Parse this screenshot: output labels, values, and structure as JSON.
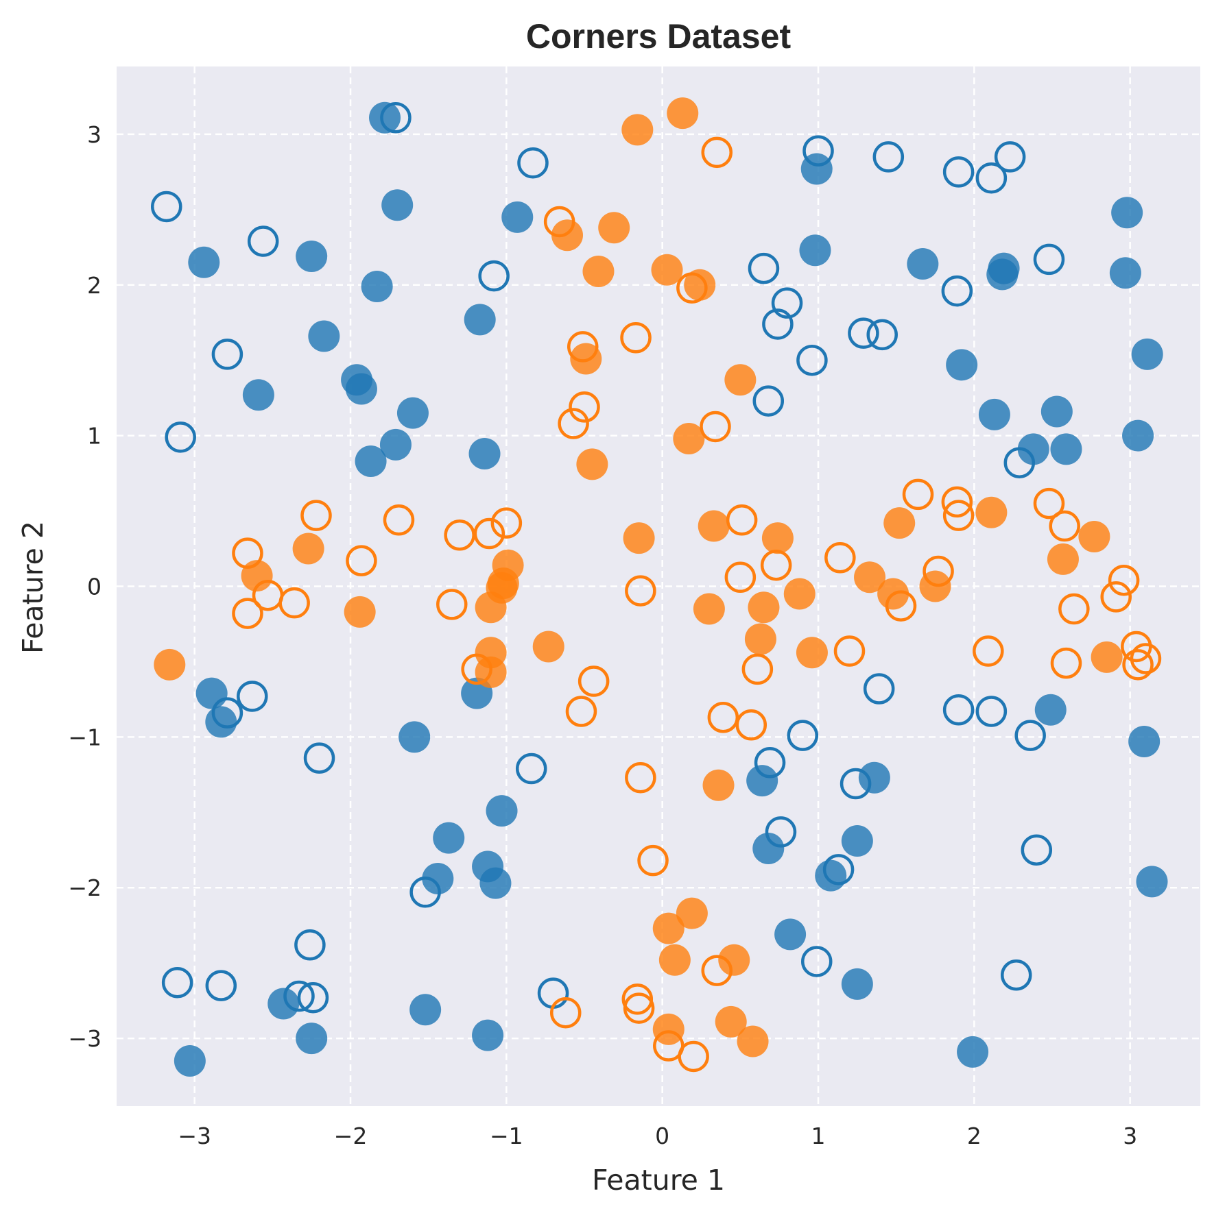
{
  "chart_data": {
    "type": "scatter",
    "title": "Corners Dataset",
    "xlabel": "Feature 1",
    "ylabel": "Feature 2",
    "xlim": [
      -3.5,
      3.45
    ],
    "ylim": [
      -3.45,
      3.45
    ],
    "xticks": [
      -3,
      -2,
      -1,
      0,
      1,
      2,
      3
    ],
    "yticks": [
      -3,
      -2,
      -1,
      0,
      1,
      2,
      3
    ],
    "xtick_labels": [
      "−3",
      "−2",
      "−1",
      "0",
      "1",
      "2",
      "3"
    ],
    "ytick_labels": [
      "−3",
      "−2",
      "−1",
      "0",
      "1",
      "2",
      "3"
    ],
    "grid": true,
    "legend": false,
    "background": "#eaeaf2",
    "colors": {
      "blue": "#1f77b4",
      "orange": "#ff7f0e"
    },
    "series": [
      {
        "color": "blue",
        "marker": "filled",
        "points": [
          [
            -1.78,
            3.11
          ],
          [
            -0.93,
            2.45
          ],
          [
            -1.7,
            2.53
          ],
          [
            -2.94,
            2.15
          ],
          [
            -2.25,
            2.19
          ],
          [
            -1.83,
            1.99
          ],
          [
            -1.17,
            1.77
          ],
          [
            -2.17,
            1.66
          ],
          [
            -1.96,
            1.37
          ],
          [
            -1.93,
            1.31
          ],
          [
            -2.59,
            1.27
          ],
          [
            -1.6,
            1.15
          ],
          [
            -1.71,
            0.94
          ],
          [
            -1.87,
            0.83
          ],
          [
            -1.14,
            0.88
          ],
          [
            0.99,
            2.77
          ],
          [
            0.98,
            2.23
          ],
          [
            1.67,
            2.14
          ],
          [
            2.19,
            2.11
          ],
          [
            2.18,
            2.07
          ],
          [
            2.98,
            2.48
          ],
          [
            2.97,
            2.08
          ],
          [
            1.92,
            1.47
          ],
          [
            3.11,
            1.54
          ],
          [
            2.13,
            1.14
          ],
          [
            2.53,
            1.16
          ],
          [
            3.05,
            1.0
          ],
          [
            2.38,
            0.91
          ],
          [
            2.59,
            0.91
          ],
          [
            -2.89,
            -0.71
          ],
          [
            -2.83,
            -0.9
          ],
          [
            -1.59,
            -1.0
          ],
          [
            -1.19,
            -0.71
          ],
          [
            -1.03,
            -1.49
          ],
          [
            -1.37,
            -1.67
          ],
          [
            -1.44,
            -1.94
          ],
          [
            -1.12,
            -1.86
          ],
          [
            -1.07,
            -1.97
          ],
          [
            -1.52,
            -2.81
          ],
          [
            -2.43,
            -2.77
          ],
          [
            -2.25,
            -3.0
          ],
          [
            -3.03,
            -3.15
          ],
          [
            -1.12,
            -2.98
          ],
          [
            0.64,
            -1.29
          ],
          [
            0.68,
            -1.74
          ],
          [
            1.36,
            -1.27
          ],
          [
            1.25,
            -1.69
          ],
          [
            1.08,
            -1.92
          ],
          [
            0.82,
            -2.31
          ],
          [
            1.25,
            -2.64
          ],
          [
            2.49,
            -0.82
          ],
          [
            3.09,
            -1.03
          ],
          [
            3.14,
            -1.96
          ],
          [
            1.99,
            -3.09
          ]
        ]
      },
      {
        "color": "blue",
        "marker": "open",
        "points": [
          [
            -1.71,
            3.11
          ],
          [
            -0.83,
            2.81
          ],
          [
            -3.18,
            2.52
          ],
          [
            -2.56,
            2.29
          ],
          [
            -1.08,
            2.06
          ],
          [
            -2.79,
            1.54
          ],
          [
            -3.09,
            0.99
          ],
          [
            1.0,
            2.89
          ],
          [
            1.45,
            2.85
          ],
          [
            1.9,
            2.75
          ],
          [
            2.11,
            2.71
          ],
          [
            2.23,
            2.85
          ],
          [
            2.48,
            2.17
          ],
          [
            0.65,
            2.11
          ],
          [
            1.89,
            1.96
          ],
          [
            0.8,
            1.88
          ],
          [
            0.74,
            1.74
          ],
          [
            1.29,
            1.68
          ],
          [
            1.41,
            1.67
          ],
          [
            0.96,
            1.5
          ],
          [
            0.68,
            1.23
          ],
          [
            2.29,
            0.82
          ],
          [
            -2.79,
            -0.84
          ],
          [
            -2.63,
            -0.73
          ],
          [
            -2.2,
            -1.14
          ],
          [
            -0.84,
            -1.21
          ],
          [
            -1.52,
            -2.03
          ],
          [
            -2.26,
            -2.38
          ],
          [
            -3.11,
            -2.63
          ],
          [
            -2.83,
            -2.65
          ],
          [
            -2.33,
            -2.72
          ],
          [
            -2.24,
            -2.73
          ],
          [
            -0.7,
            -2.7
          ],
          [
            1.39,
            -0.68
          ],
          [
            0.9,
            -0.99
          ],
          [
            0.69,
            -1.17
          ],
          [
            1.24,
            -1.31
          ],
          [
            0.76,
            -1.63
          ],
          [
            1.13,
            -1.88
          ],
          [
            0.99,
            -2.49
          ],
          [
            1.9,
            -0.82
          ],
          [
            2.11,
            -0.83
          ],
          [
            2.36,
            -0.99
          ],
          [
            2.4,
            -1.75
          ],
          [
            2.27,
            -2.58
          ]
        ]
      },
      {
        "color": "orange",
        "marker": "filled",
        "points": [
          [
            0.13,
            3.14
          ],
          [
            -0.16,
            3.03
          ],
          [
            -0.31,
            2.38
          ],
          [
            -0.61,
            2.33
          ],
          [
            -0.41,
            2.09
          ],
          [
            0.03,
            2.1
          ],
          [
            0.24,
            2.0
          ],
          [
            -0.49,
            1.51
          ],
          [
            0.5,
            1.37
          ],
          [
            -0.45,
            0.81
          ],
          [
            0.17,
            0.98
          ],
          [
            -3.16,
            -0.52
          ],
          [
            -2.27,
            0.25
          ],
          [
            -2.6,
            0.07
          ],
          [
            -1.94,
            -0.17
          ],
          [
            -0.99,
            0.14
          ],
          [
            -1.02,
            0.02
          ],
          [
            -1.03,
            -0.01
          ],
          [
            -1.1,
            -0.14
          ],
          [
            -1.1,
            -0.44
          ],
          [
            -1.1,
            -0.57
          ],
          [
            -0.73,
            -0.4
          ],
          [
            -0.15,
            0.32
          ],
          [
            0.33,
            0.4
          ],
          [
            0.74,
            0.32
          ],
          [
            0.3,
            -0.15
          ],
          [
            0.65,
            -0.14
          ],
          [
            0.63,
            -0.35
          ],
          [
            0.88,
            -0.05
          ],
          [
            0.96,
            -0.44
          ],
          [
            1.33,
            0.06
          ],
          [
            1.52,
            0.42
          ],
          [
            1.48,
            -0.05
          ],
          [
            1.75,
            0.0
          ],
          [
            2.11,
            0.49
          ],
          [
            2.57,
            0.18
          ],
          [
            2.77,
            0.33
          ],
          [
            2.85,
            -0.47
          ],
          [
            0.36,
            -1.32
          ],
          [
            0.04,
            -2.27
          ],
          [
            0.19,
            -2.17
          ],
          [
            0.08,
            -2.48
          ],
          [
            0.46,
            -2.48
          ],
          [
            0.44,
            -2.89
          ],
          [
            0.04,
            -2.94
          ],
          [
            0.58,
            -3.02
          ]
        ]
      },
      {
        "color": "orange",
        "marker": "open",
        "points": [
          [
            0.35,
            2.88
          ],
          [
            -0.66,
            2.42
          ],
          [
            0.19,
            1.98
          ],
          [
            -0.17,
            1.65
          ],
          [
            -0.51,
            1.59
          ],
          [
            -0.5,
            1.19
          ],
          [
            -0.57,
            1.08
          ],
          [
            0.34,
            1.06
          ],
          [
            -2.22,
            0.47
          ],
          [
            -1.69,
            0.44
          ],
          [
            -2.66,
            0.22
          ],
          [
            -1.93,
            0.17
          ],
          [
            -1.3,
            0.34
          ],
          [
            -1.11,
            0.35
          ],
          [
            -1.0,
            0.42
          ],
          [
            -2.53,
            -0.06
          ],
          [
            -2.36,
            -0.11
          ],
          [
            -2.66,
            -0.18
          ],
          [
            -1.35,
            -0.12
          ],
          [
            -1.19,
            -0.55
          ],
          [
            -0.44,
            -0.63
          ],
          [
            -0.52,
            -0.83
          ],
          [
            -0.14,
            -0.03
          ],
          [
            0.51,
            0.44
          ],
          [
            0.5,
            0.06
          ],
          [
            0.73,
            0.14
          ],
          [
            1.14,
            0.19
          ],
          [
            1.2,
            -0.43
          ],
          [
            0.61,
            -0.55
          ],
          [
            0.39,
            -0.87
          ],
          [
            0.57,
            -0.92
          ],
          [
            -0.14,
            -1.27
          ],
          [
            -0.06,
            -1.82
          ],
          [
            1.64,
            0.61
          ],
          [
            1.89,
            0.56
          ],
          [
            1.9,
            0.47
          ],
          [
            1.77,
            0.1
          ],
          [
            1.53,
            -0.13
          ],
          [
            2.09,
            -0.43
          ],
          [
            2.48,
            0.55
          ],
          [
            2.58,
            0.4
          ],
          [
            2.96,
            0.04
          ],
          [
            2.91,
            -0.07
          ],
          [
            2.64,
            -0.15
          ],
          [
            2.59,
            -0.51
          ],
          [
            3.04,
            -0.4
          ],
          [
            3.05,
            -0.52
          ],
          [
            3.1,
            -0.48
          ],
          [
            0.35,
            -2.55
          ],
          [
            -0.16,
            -2.74
          ],
          [
            -0.15,
            -2.8
          ],
          [
            -0.62,
            -2.83
          ],
          [
            0.04,
            -3.05
          ],
          [
            0.2,
            -3.12
          ]
        ]
      }
    ]
  }
}
